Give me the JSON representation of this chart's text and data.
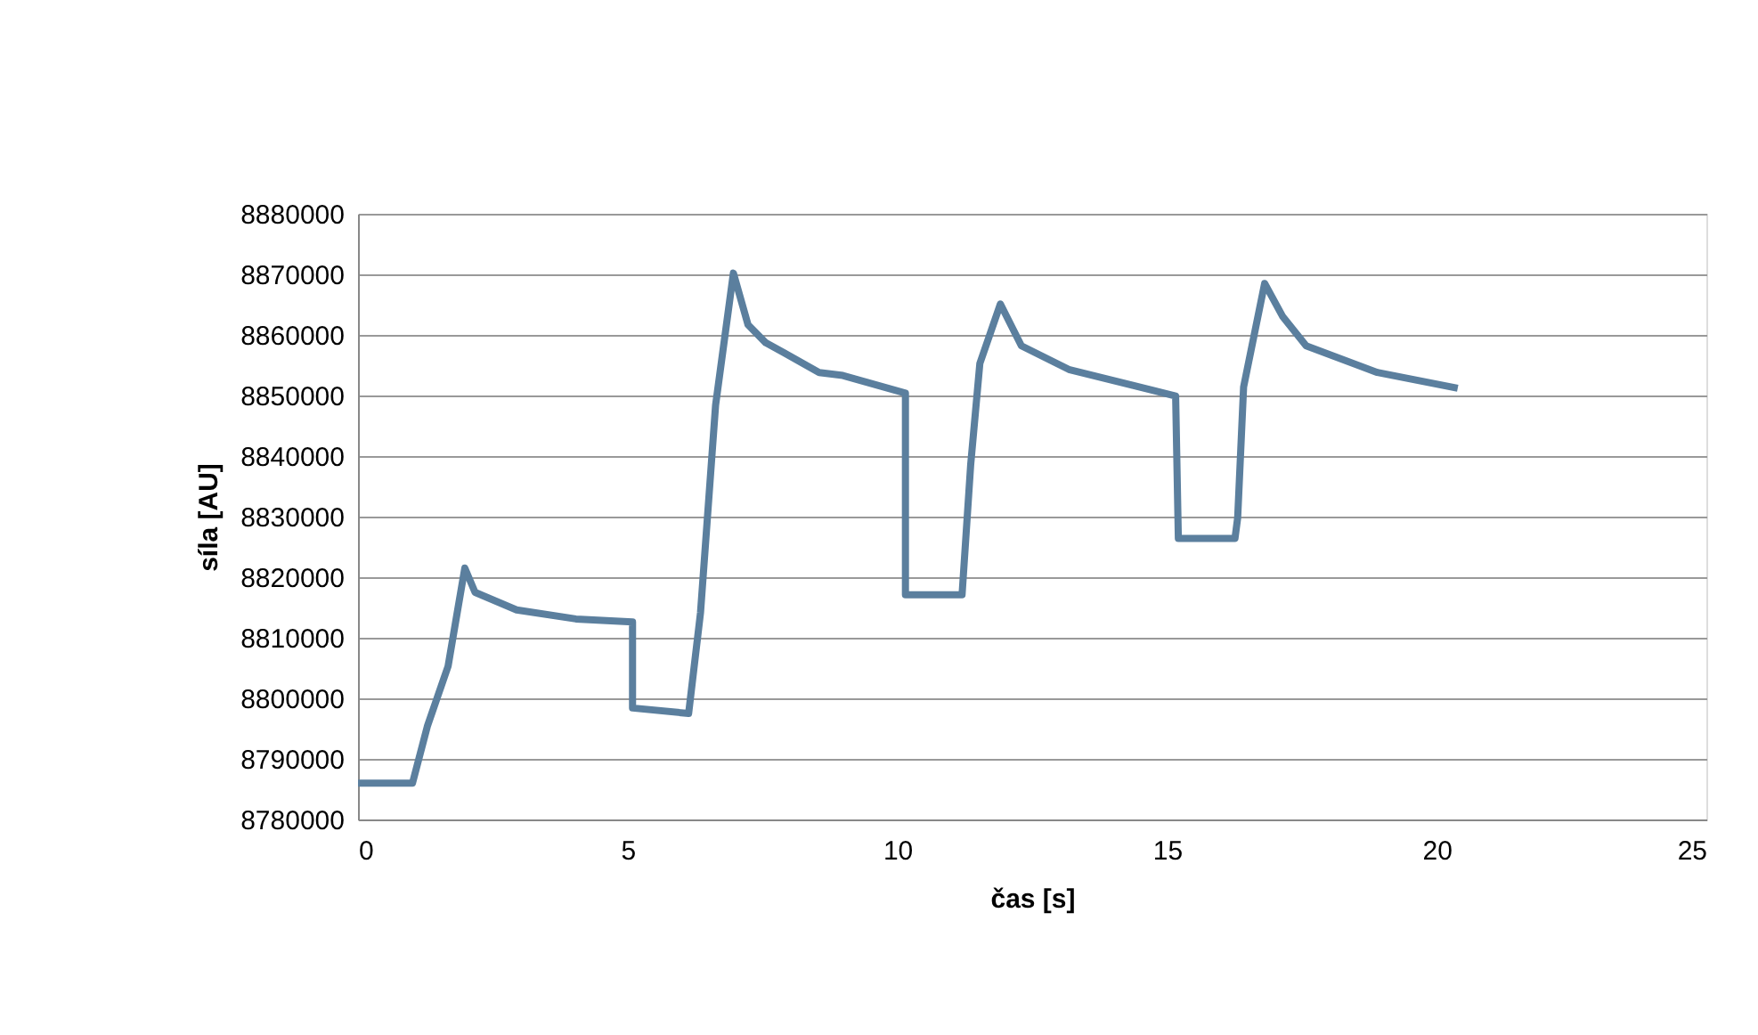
{
  "chart_data": {
    "type": "line",
    "xlabel": "čas [s]",
    "ylabel": "síla [AU]",
    "x": [
      0,
      1.01,
      1.29,
      1.67,
      1.98,
      2.17,
      2.94,
      4.04,
      5.09,
      5.09,
      6.13,
      6.35,
      6.63,
      6.96,
      7.23,
      7.56,
      7.89,
      8.55,
      8.99,
      10.15,
      10.15,
      11.2,
      11.36,
      11.53,
      11.91,
      12.3,
      13.18,
      15.16,
      15.21,
      16.26,
      16.31,
      16.42,
      16.81,
      17.14,
      17.58,
      18.9,
      20.39
    ],
    "series": [
      {
        "color": "#5b7f9e",
        "values": [
          8786000,
          8786000,
          8795500,
          8805300,
          8821500,
          8817500,
          8814600,
          8813100,
          8812600,
          8798400,
          8797500,
          8814100,
          8848400,
          8870200,
          8861700,
          8858700,
          8857100,
          8853800,
          8853300,
          8850400,
          8817100,
          8817100,
          8838600,
          8855300,
          8865100,
          8858200,
          8854300,
          8849900,
          8826400,
          8826400,
          8829800,
          8851400,
          8868500,
          8863100,
          8858200,
          8853800,
          8851200
        ]
      }
    ],
    "xlim": [
      0,
      25
    ],
    "xticks": [
      0,
      5,
      10,
      15,
      20,
      25
    ],
    "ylim": [
      8780000,
      8880000
    ],
    "yticks": [
      8780000,
      8790000,
      8800000,
      8810000,
      8820000,
      8830000,
      8840000,
      8850000,
      8860000,
      8870000,
      8880000
    ],
    "grid": "y",
    "marker": "none",
    "line_style": "solid"
  }
}
